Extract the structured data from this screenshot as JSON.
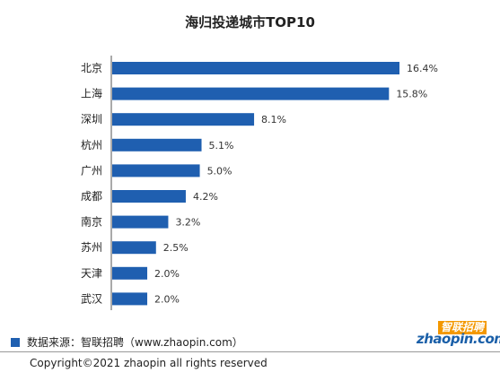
{
  "chart_data": {
    "type": "bar",
    "orientation": "horizontal",
    "title": "海归投递城市TOP10",
    "categories": [
      "北京",
      "上海",
      "深圳",
      "杭州",
      "广州",
      "成都",
      "南京",
      "苏州",
      "天津",
      "武汉"
    ],
    "values": [
      16.4,
      15.8,
      8.1,
      5.1,
      5.0,
      4.2,
      3.2,
      2.5,
      2.0,
      2.0
    ],
    "value_labels": [
      "16.4%",
      "15.8%",
      "8.1%",
      "5.1%",
      "5.0%",
      "4.2%",
      "3.2%",
      "2.5%",
      "2.0%",
      "2.0%"
    ],
    "xlim": [
      0,
      18.5
    ],
    "bar_color": "#1f5fb0",
    "grid": false
  },
  "footer": {
    "source": "数据来源：智联招聘（www.zhaopin.com）",
    "copyright": "Copyright©2021 zhaopin all rights reserved"
  },
  "logo": {
    "cn": "智联招聘",
    "en": "zhaopin.com"
  }
}
